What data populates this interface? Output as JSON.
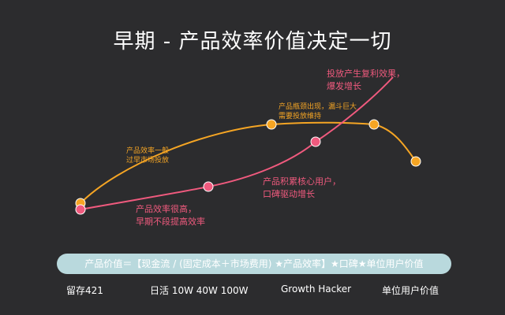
{
  "title": "早期 - 产品效率价值决定一切",
  "colors": {
    "background": "#2c2c2e",
    "orange": "#f5a524",
    "pink": "#f05a7e",
    "formula_bar": "#b9d9dd"
  },
  "annotations": {
    "early_orange": [
      "产品效率一般",
      "过早市场投放"
    ],
    "bottleneck_orange": [
      "产品瓶颈出现，漏斗巨大",
      "需要投放维持"
    ],
    "early_pink": [
      "产品效率很高，",
      "早期不段提高效率"
    ],
    "core_users_pink": [
      "产品积累核心用户，",
      "口碑驱动增长"
    ],
    "compound_pink": [
      "投放产生复利效果，",
      "爆发增长"
    ]
  },
  "formula": "产品价值＝【现金流 / (固定成本＋市场费用) ★产品效率】★口碑★单位用户价值",
  "bottom_labels": [
    "留存421",
    "日活 10W 40W 100W",
    "Growth Hacker",
    "单位用户价值"
  ]
}
